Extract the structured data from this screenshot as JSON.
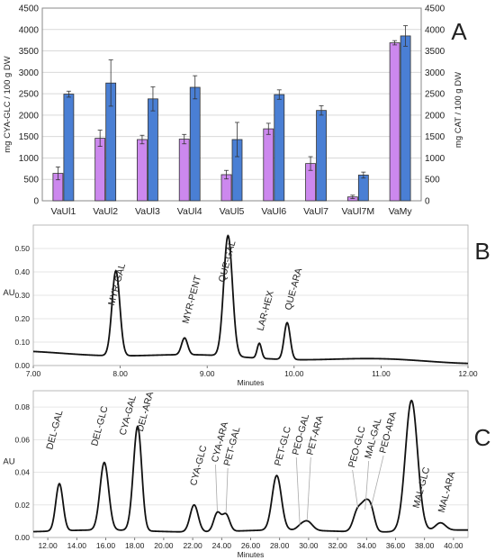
{
  "chart_data": [
    {
      "panel": "A",
      "type": "bar",
      "categories": [
        "VaUl1",
        "VaUl2",
        "VaUl3",
        "VaUl4",
        "VaUl5",
        "VaUl6",
        "VaUl7",
        "VaUl7M",
        "VaMy"
      ],
      "ylabel": "mg CYA-GLC / 100 g DW",
      "y2label": "mg CAT / 100 g DW",
      "ylim": [
        0,
        4500
      ],
      "y2lim": [
        0,
        4500
      ],
      "yticks": [
        "0",
        "500",
        "1000",
        "1500",
        "2000",
        "2500",
        "3000",
        "3500",
        "4000",
        "4500"
      ],
      "grid": true,
      "series": [
        {
          "color": "#cc88ee",
          "axis": "left",
          "values": [
            640,
            1460,
            1430,
            1440,
            610,
            1680,
            870,
            90,
            3690
          ],
          "errors": [
            150,
            190,
            100,
            110,
            100,
            130,
            160,
            40,
            50
          ]
        },
        {
          "color": "#4a7fd4",
          "axis": "right",
          "values": [
            2490,
            2750,
            2380,
            2650,
            1430,
            2480,
            2110,
            600,
            3850
          ],
          "errors": [
            70,
            540,
            280,
            270,
            400,
            110,
            110,
            70,
            240
          ]
        }
      ]
    },
    {
      "panel": "B",
      "type": "line",
      "ylabel": "AU",
      "xlabel": "Minutes",
      "xlim": [
        7.0,
        12.0
      ],
      "ylim": [
        0.0,
        0.6
      ],
      "xticks": [
        "7.00",
        "8.00",
        "9.00",
        "10.00",
        "11.00",
        "12.00"
      ],
      "yticks": [
        "0.00",
        "0.10",
        "0.20",
        "0.30",
        "0.40",
        "0.50"
      ],
      "baseline": 0.055,
      "peaks": [
        {
          "label": "MYR-GAL",
          "x": 7.95,
          "y": 0.405
        },
        {
          "label": "MYR-PENT",
          "x": 8.74,
          "y": 0.118
        },
        {
          "label": "QUE-GAL",
          "x": 9.24,
          "y": 0.555
        },
        {
          "label": "LAR-HEX",
          "x": 9.6,
          "y": 0.095
        },
        {
          "label": "QUE-ARA",
          "x": 9.92,
          "y": 0.183
        }
      ]
    },
    {
      "panel": "C",
      "type": "line",
      "ylabel": "AU",
      "xlabel": "Minutes",
      "xlim": [
        11.0,
        41.0
      ],
      "ylim": [
        0.0,
        0.09
      ],
      "xticks": [
        "12.00",
        "14.00",
        "16.00",
        "18.00",
        "20.00",
        "22.00",
        "24.00",
        "26.00",
        "28.00",
        "30.00",
        "32.00",
        "34.00",
        "36.00",
        "38.00",
        "40.00"
      ],
      "yticks": [
        "0.00",
        "0.02",
        "0.04",
        "0.06",
        "0.08"
      ],
      "baseline": 0.004,
      "peaks": [
        {
          "label": "DEL-GAL",
          "x": 12.8,
          "y": 0.033
        },
        {
          "label": "DEL-GLC",
          "x": 15.9,
          "y": 0.046
        },
        {
          "label": "CYA-GAL",
          "x": 18.1,
          "y": 0.042
        },
        {
          "label": "DEL-ARA",
          "x": 18.3,
          "y": 0.035
        },
        {
          "label": "CYA-GLC",
          "x": 22.1,
          "y": 0.02
        },
        {
          "label": "CYA-ARA",
          "x": 23.7,
          "y": 0.015
        },
        {
          "label": "PET-GAL",
          "x": 24.3,
          "y": 0.014
        },
        {
          "label": "PET-GLC",
          "x": 27.8,
          "y": 0.038
        },
        {
          "label": "PEO-GAL",
          "x": 29.4,
          "y": 0.006
        },
        {
          "label": "PET-ARA",
          "x": 29.9,
          "y": 0.01
        },
        {
          "label": "PEO-GLC",
          "x": 33.4,
          "y": 0.017
        },
        {
          "label": "MAL-GAL",
          "x": 33.9,
          "y": 0.016
        },
        {
          "label": "PEO-ARA",
          "x": 34.3,
          "y": 0.017
        },
        {
          "label": "MAL-GLC",
          "x": 37.1,
          "y": 0.084
        },
        {
          "label": "MAL-ARA",
          "x": 39.1,
          "y": 0.009
        }
      ]
    }
  ]
}
